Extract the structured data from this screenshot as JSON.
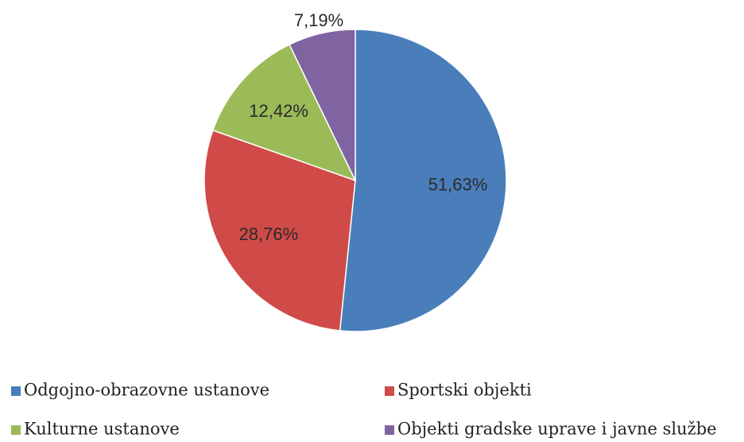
{
  "chart_data": {
    "type": "pie",
    "categories": [
      "Odgojno-obrazovne ustanove",
      "Sportski objekti",
      "Kulturne ustanove",
      "Objekti gradske uprave i javne službe"
    ],
    "values": [
      51.63,
      28.76,
      12.42,
      7.19
    ],
    "value_labels": [
      "51,63%",
      "28,76%",
      "12,42%",
      "7,19%"
    ],
    "colors": [
      "#4a7ebb",
      "#d04a47",
      "#9bbb59",
      "#8064a2"
    ]
  }
}
